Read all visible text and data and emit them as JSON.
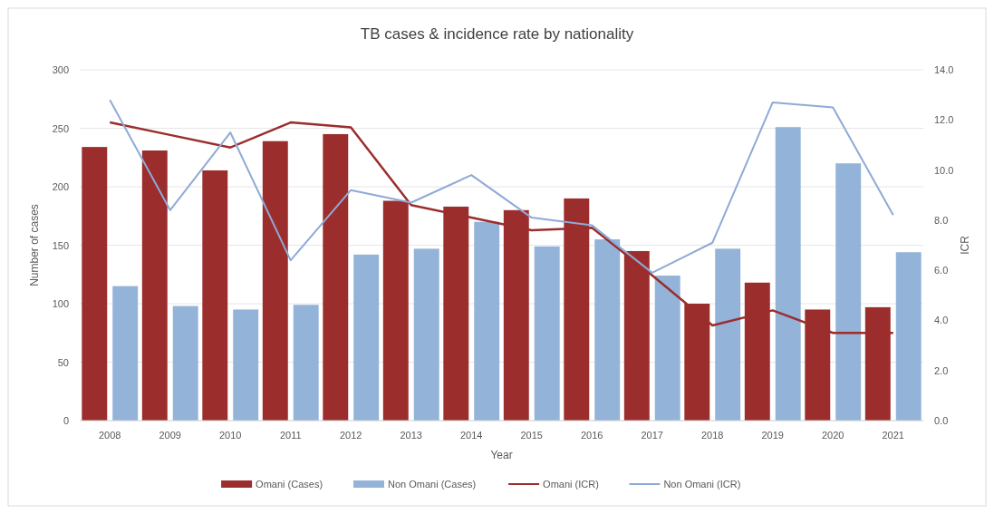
{
  "chart_data": {
    "type": "bar",
    "title": "TB cases & incidence rate by nationality",
    "xlabel": "Year",
    "ylabel": "Number of cases",
    "y2label": "ICR",
    "categories": [
      "2008",
      "2009",
      "2010",
      "2011",
      "2012",
      "2013",
      "2014",
      "2015",
      "2016",
      "2017",
      "2018",
      "2019",
      "2020",
      "2021"
    ],
    "series": [
      {
        "name": "Omani (Cases)",
        "color": "#9b2d2d",
        "values": [
          234,
          231,
          214,
          239,
          245,
          188,
          183,
          180,
          190,
          145,
          100,
          118,
          95,
          97
        ]
      },
      {
        "name": "Non Omani (Cases)",
        "color": "#93b3d8",
        "values": [
          115,
          98,
          95,
          99,
          142,
          147,
          170,
          149,
          155,
          124,
          147,
          251,
          220,
          144
        ]
      },
      {
        "name": "Omani (ICR)",
        "type": "line",
        "axis": "y2",
        "color": "#9b2d2d",
        "values": [
          11.9,
          11.4,
          10.9,
          11.9,
          11.7,
          8.6,
          8.1,
          7.6,
          7.7,
          5.8,
          3.8,
          4.4,
          3.5,
          3.5
        ]
      },
      {
        "name": "Non Omani (ICR)",
        "type": "line",
        "axis": "y2",
        "color": "#8eaad6",
        "values": [
          12.8,
          8.4,
          11.5,
          6.4,
          9.2,
          8.7,
          9.8,
          8.1,
          7.8,
          5.9,
          7.1,
          12.7,
          12.5,
          8.2
        ]
      }
    ],
    "ylim": [
      0,
      300
    ],
    "yticks": [
      0,
      50,
      100,
      150,
      200,
      250,
      300
    ],
    "y2lim": [
      0,
      14
    ],
    "y2ticks": [
      {
        "value": 0,
        "label": "0.0"
      },
      {
        "value": 2,
        "label": "2.0"
      },
      {
        "value": 4,
        "label": "4.0"
      },
      {
        "value": 6,
        "label": "6.0"
      },
      {
        "value": 8,
        "label": "8.0"
      },
      {
        "value": 10,
        "label": "10.0"
      },
      {
        "value": 12,
        "label": "12.0"
      },
      {
        "value": 14,
        "label": "14.0"
      }
    ],
    "grid": "y",
    "legend": "bottom",
    "marker": "none",
    "line_style": "solid"
  }
}
